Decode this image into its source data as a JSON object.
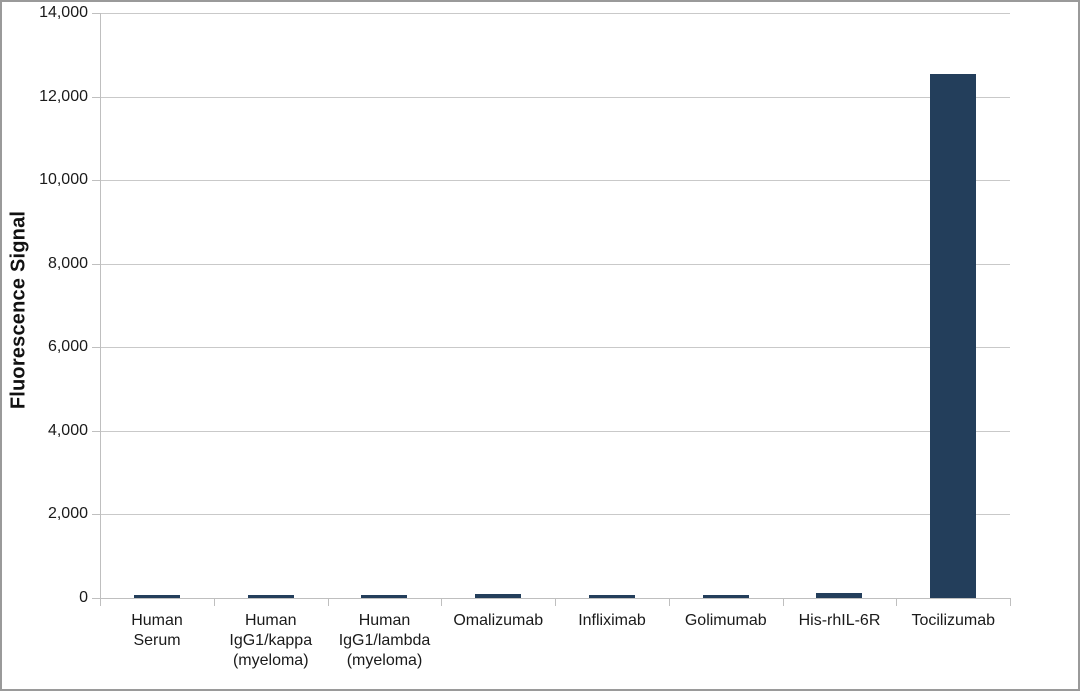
{
  "figure": {
    "background": "#FFFFFF",
    "border_color": "#9A9A9A"
  },
  "chart_data": {
    "type": "bar",
    "title": "",
    "xlabel": "",
    "ylabel": "Fluorescence Signal",
    "categories": [
      "Human\nSerum",
      "Human\nIgG1/kappa\n(myeloma)",
      "Human\nIgG1/lambda\n(myeloma)",
      "Omalizumab",
      "Infliximab",
      "Golimumab",
      "His-rhIL-6R",
      "Tocilizumab"
    ],
    "values": [
      70,
      70,
      75,
      100,
      60,
      70,
      115,
      12550
    ],
    "ylim": [
      0,
      14000
    ],
    "ytick_interval": 2000,
    "ytick_labels": [
      "0",
      "2,000",
      "4,000",
      "6,000",
      "8,000",
      "10,000",
      "12,000",
      "14,000"
    ],
    "grid": true,
    "legend": false,
    "bar_color": "#233E5B",
    "gridline_color": "#C9C9C9",
    "axis_color": "#BFBFBF",
    "text_color": "#1A1A1A"
  }
}
